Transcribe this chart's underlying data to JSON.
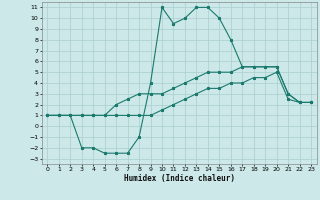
{
  "xlabel": "Humidex (Indice chaleur)",
  "xlim": [
    -0.5,
    23.5
  ],
  "ylim": [
    -3.5,
    11.5
  ],
  "xticks": [
    0,
    1,
    2,
    3,
    4,
    5,
    6,
    7,
    8,
    9,
    10,
    11,
    12,
    13,
    14,
    15,
    16,
    17,
    18,
    19,
    20,
    21,
    22,
    23
  ],
  "yticks": [
    -3,
    -2,
    -1,
    0,
    1,
    2,
    3,
    4,
    5,
    6,
    7,
    8,
    9,
    10,
    11
  ],
  "background_color": "#cce8e8",
  "grid_color": "#aacece",
  "line_color": "#1a7a6e",
  "line1_x": [
    0,
    1,
    2,
    3,
    4,
    5,
    6,
    7,
    8,
    9,
    10,
    11,
    12,
    13,
    14,
    15,
    16,
    17,
    18,
    19,
    20,
    21,
    22,
    23
  ],
  "line1_y": [
    1,
    1,
    1,
    1,
    1,
    1,
    2,
    2.5,
    3,
    3,
    3,
    3.5,
    4,
    4.5,
    5,
    5,
    5,
    5.5,
    5.5,
    5.5,
    5.5,
    3,
    2.2,
    2.2
  ],
  "line2_x": [
    0,
    1,
    2,
    3,
    4,
    5,
    6,
    7,
    8,
    9,
    10,
    11,
    12,
    13,
    14,
    15,
    16,
    17,
    18,
    19,
    20,
    21,
    22,
    23
  ],
  "line2_y": [
    1,
    1,
    1,
    1,
    1,
    1,
    1,
    1,
    1,
    1,
    1.5,
    2,
    2.5,
    3,
    3.5,
    3.5,
    4,
    4,
    4.5,
    4.5,
    5,
    2.5,
    2.2,
    2.2
  ],
  "line3_x": [
    0,
    1,
    2,
    3,
    4,
    5,
    6,
    7,
    8,
    9,
    10,
    11,
    12,
    13,
    14,
    15,
    16,
    17,
    18,
    19,
    20,
    21,
    22,
    23
  ],
  "line3_y": [
    1,
    1,
    1,
    -2,
    -2,
    -2.5,
    -2.5,
    -2.5,
    -1,
    4,
    11,
    9.5,
    10,
    11,
    11,
    10,
    8,
    5.5,
    5.5,
    5.5,
    5.5,
    3,
    2.2,
    2.2
  ]
}
